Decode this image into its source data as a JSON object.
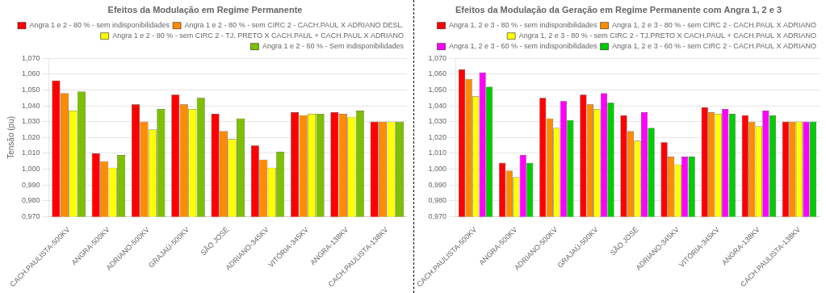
{
  "chart_data": [
    {
      "type": "bar",
      "title": "Efeitos da Modulação em Regime Permanente",
      "ylabel": "Tensão (pu)",
      "categories": [
        "CACH.PAULISTA-500KV",
        "ANGRA-500KV",
        "ADRIANO-500KV",
        "GRAJAÚ-500KV",
        "SÃO JOSÉ",
        "ADRIANO-345KV",
        "VITÓRIA-345KV",
        "ANGRA-138KV",
        "CACH.PAULISTA-138KV"
      ],
      "series": [
        {
          "name": "Angra 1 e 2 - 80 % - sem indisponibilidades",
          "color": "#FF0000",
          "values": [
            1.056,
            1.01,
            1.041,
            1.047,
            1.035,
            1.015,
            1.036,
            1.036,
            1.03
          ]
        },
        {
          "name": "Angra 1 e 2 - 80 % - sem CIRC 2 - CACH.PAUL X ADRIANO DESL.",
          "color": "#FF8C00",
          "values": [
            1.048,
            1.005,
            1.03,
            1.041,
            1.024,
            1.006,
            1.034,
            1.035,
            1.03
          ]
        },
        {
          "name": "Angra 1 e 2 - 80 % - sem CIRC 2 - TJ. PRETO X CACH.PAUL + CACH.PAUL X ADRIANO",
          "color": "#FFFF00",
          "values": [
            1.037,
            1.001,
            1.025,
            1.038,
            1.019,
            1.001,
            1.035,
            1.033,
            1.03
          ]
        },
        {
          "name": "Angra 1 e 2 - 60 % - Sem indisponibilidades",
          "color": "#7DC000",
          "values": [
            1.049,
            1.009,
            1.038,
            1.045,
            1.032,
            1.011,
            1.035,
            1.037,
            1.03
          ]
        }
      ],
      "ylim": [
        0.97,
        1.07
      ],
      "yticks": [
        {
          "value": 0.97,
          "label": "0,970"
        },
        {
          "value": 0.98,
          "label": "0,980"
        },
        {
          "value": 0.99,
          "label": "0,990"
        },
        {
          "value": 1.0,
          "label": "1,000"
        },
        {
          "value": 1.01,
          "label": "1,010"
        },
        {
          "value": 1.02,
          "label": "1,020"
        },
        {
          "value": 1.03,
          "label": "1,030"
        },
        {
          "value": 1.04,
          "label": "1,040"
        },
        {
          "value": 1.05,
          "label": "1,050"
        },
        {
          "value": 1.06,
          "label": "1,060"
        },
        {
          "value": 1.07,
          "label": "1,070"
        }
      ],
      "grid": true,
      "legend": "upper right"
    },
    {
      "type": "bar",
      "title": "Efeitos da Modulação da Geração em Regime Permanente com Angra 1, 2 e 3",
      "categories": [
        "CACH.PAULISTA-500KV",
        "ANGRA-500KV",
        "ADRIANO-500KV",
        "GRAJAÚ-500KV",
        "SÃO JOSÉ",
        "ADRIANO-345KV",
        "VITÓRIA-345KV",
        "ANGRA-138KV",
        "CACH.PAULISTA-138KV"
      ],
      "series": [
        {
          "name": "Angra 1, 2 e 3 - 80 % - sem indisponibilidades",
          "color": "#FF0000",
          "values": [
            1.063,
            1.004,
            1.045,
            1.047,
            1.034,
            1.017,
            1.039,
            1.034,
            1.03
          ]
        },
        {
          "name": "Angra 1, 2 e 3 - 80 % - sem CIRC 2 - CACH.PAUL X ADRIANO",
          "color": "#FF8C00",
          "values": [
            1.057,
            0.999,
            1.032,
            1.041,
            1.024,
            1.008,
            1.036,
            1.03,
            1.03
          ]
        },
        {
          "name": "Angra 1, 2 e 3 - 80 % - sem CIRC 2 - TJ.PRETO X CACH.PAUL + CACH.PAUL X ADRIANO",
          "color": "#FFFF00",
          "values": [
            1.046,
            0.995,
            1.026,
            1.038,
            1.018,
            1.003,
            1.035,
            1.027,
            1.03
          ]
        },
        {
          "name": "Angra 1, 2 e 3 - 60 % - sem indisponibilidades",
          "color": "#FF00FF",
          "values": [
            1.061,
            1.009,
            1.043,
            1.048,
            1.036,
            1.008,
            1.038,
            1.037,
            1.03
          ]
        },
        {
          "name": "Angra 1, 2 e 3 - 60 % - sem CIRC 2 - CACH.PAUL X ADRIANO",
          "color": "#00CC00",
          "values": [
            1.052,
            1.004,
            1.031,
            1.042,
            1.026,
            1.008,
            1.035,
            1.034,
            1.03
          ]
        }
      ],
      "ylim": [
        0.97,
        1.07
      ],
      "yticks": [
        {
          "value": 0.97,
          "label": "0,970"
        },
        {
          "value": 0.98,
          "label": "0,980"
        },
        {
          "value": 0.99,
          "label": "0,990"
        },
        {
          "value": 1.0,
          "label": "1,000"
        },
        {
          "value": 1.01,
          "label": "1,010"
        },
        {
          "value": 1.02,
          "label": "1,020"
        },
        {
          "value": 1.03,
          "label": "1,030"
        },
        {
          "value": 1.04,
          "label": "1,040"
        },
        {
          "value": 1.05,
          "label": "1,050"
        },
        {
          "value": 1.06,
          "label": "1,060"
        },
        {
          "value": 1.07,
          "label": "1,070"
        }
      ],
      "grid": true,
      "legend": "upper right"
    }
  ]
}
